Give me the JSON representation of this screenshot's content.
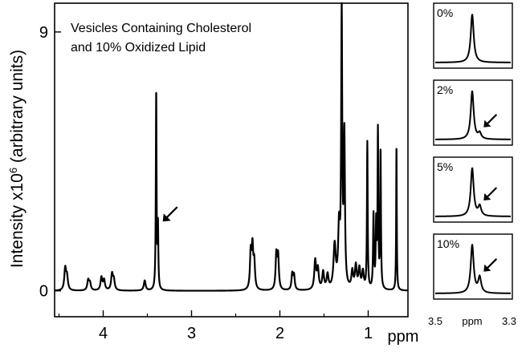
{
  "chart_data": [
    {
      "type": "line",
      "title_lines": [
        "Vesicles Containing Cholesterol",
        "and 10% Oxidized Lipid"
      ],
      "xlabel": "ppm",
      "ylabel_main": "Intensity x10",
      "ylabel_sup": "6",
      "ylabel_tail": " (arbitrary units)",
      "xlim": [
        4.55,
        0.55
      ],
      "ylim": [
        -0.9,
        10.0
      ],
      "x_reversed": true,
      "x_ticks": [
        "4",
        "3",
        "2",
        "1"
      ],
      "y_ticks": [
        "0",
        "9"
      ],
      "grid": false,
      "annotation": {
        "type": "arrow",
        "points_to_ppm": 3.38,
        "y": 2.3
      },
      "series": [
        {
          "peaks": [
            {
              "ppm": 4.43,
              "height": 0.75,
              "width": 0.012
            },
            {
              "ppm": 4.41,
              "height": 0.45,
              "width": 0.012
            },
            {
              "ppm": 4.17,
              "height": 0.35,
              "width": 0.012
            },
            {
              "ppm": 4.15,
              "height": 0.25,
              "width": 0.012
            },
            {
              "ppm": 4.02,
              "height": 0.45,
              "width": 0.012
            },
            {
              "ppm": 3.99,
              "height": 0.35,
              "width": 0.012
            },
            {
              "ppm": 3.9,
              "height": 0.55,
              "width": 0.012
            },
            {
              "ppm": 3.88,
              "height": 0.35,
              "width": 0.012
            },
            {
              "ppm": 3.53,
              "height": 0.35,
              "width": 0.012
            },
            {
              "ppm": 3.4,
              "height": 6.9,
              "width": 0.005
            },
            {
              "ppm": 3.38,
              "height": 2.15,
              "width": 0.005
            },
            {
              "ppm": 2.33,
              "height": 1.25,
              "width": 0.01
            },
            {
              "ppm": 2.31,
              "height": 1.4,
              "width": 0.01
            },
            {
              "ppm": 2.29,
              "height": 0.9,
              "width": 0.01
            },
            {
              "ppm": 2.04,
              "height": 1.2,
              "width": 0.01
            },
            {
              "ppm": 2.02,
              "height": 1.15,
              "width": 0.01
            },
            {
              "ppm": 1.86,
              "height": 0.55,
              "width": 0.01
            },
            {
              "ppm": 1.84,
              "height": 0.5,
              "width": 0.01
            },
            {
              "ppm": 1.6,
              "height": 1.0,
              "width": 0.012
            },
            {
              "ppm": 1.57,
              "height": 0.7,
              "width": 0.012
            },
            {
              "ppm": 1.51,
              "height": 0.6,
              "width": 0.012
            },
            {
              "ppm": 1.46,
              "height": 0.5,
              "width": 0.012
            },
            {
              "ppm": 1.38,
              "height": 1.5,
              "width": 0.015
            },
            {
              "ppm": 1.33,
              "height": 2.0,
              "width": 0.012
            },
            {
              "ppm": 1.3,
              "height": 9.6,
              "width": 0.007
            },
            {
              "ppm": 1.27,
              "height": 5.2,
              "width": 0.008
            },
            {
              "ppm": 1.18,
              "height": 0.6,
              "width": 0.012
            },
            {
              "ppm": 1.14,
              "height": 0.8,
              "width": 0.012
            },
            {
              "ppm": 1.1,
              "height": 0.7,
              "width": 0.012
            },
            {
              "ppm": 1.06,
              "height": 0.6,
              "width": 0.012
            },
            {
              "ppm": 1.01,
              "height": 5.1,
              "width": 0.005
            },
            {
              "ppm": 0.94,
              "height": 2.6,
              "width": 0.006
            },
            {
              "ppm": 0.91,
              "height": 2.2,
              "width": 0.006
            },
            {
              "ppm": 0.89,
              "height": 5.4,
              "width": 0.005
            },
            {
              "ppm": 0.86,
              "height": 4.8,
              "width": 0.005
            },
            {
              "ppm": 0.68,
              "height": 5.1,
              "width": 0.004
            }
          ]
        }
      ]
    },
    {
      "type": "line",
      "subplots": true,
      "xlabel": "ppm",
      "xlim": [
        3.5,
        3.3
      ],
      "x_reversed": true,
      "x_tick_labels": [
        "3.5",
        "3.3"
      ],
      "panels": [
        {
          "label": "0%",
          "main_height": 1.0,
          "side_height": 0.0,
          "arrow": false
        },
        {
          "label": "2%",
          "main_height": 1.0,
          "side_height": 0.12,
          "arrow": true
        },
        {
          "label": "5%",
          "main_height": 1.0,
          "side_height": 0.2,
          "arrow": true
        },
        {
          "label": "10%",
          "main_height": 1.0,
          "side_height": 0.32,
          "arrow": true
        }
      ]
    }
  ]
}
